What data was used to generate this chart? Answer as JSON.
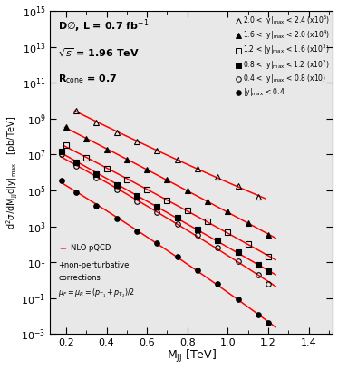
{
  "xlim": [
    0.12,
    1.52
  ],
  "ylim_log": [
    -3,
    15
  ],
  "series": [
    {
      "label": "2.0 < |y|_{max} < 2.4 (x10^5)",
      "marker": "^",
      "filled": false,
      "x": [
        0.25,
        0.35,
        0.45,
        0.55,
        0.65,
        0.75,
        0.85,
        0.95,
        1.05,
        1.15
      ],
      "y": [
        2800000000.0,
        650000000.0,
        180000000.0,
        52000000.0,
        16000000.0,
        5200000.0,
        1700000.0,
        550000.0,
        170000.0,
        45000.0
      ]
    },
    {
      "label": "1.6 < |y|_{max} < 2.0 (x10^4)",
      "marker": "^",
      "filled": true,
      "x": [
        0.2,
        0.3,
        0.4,
        0.5,
        0.6,
        0.7,
        0.8,
        0.9,
        1.0,
        1.1,
        1.2
      ],
      "y": [
        350000000.0,
        75000000.0,
        19000000.0,
        5000000.0,
        1400000.0,
        380000.0,
        100000.0,
        26000.0,
        6500.0,
        1500.0,
        330.0
      ]
    },
    {
      "label": "1.2 < |y|_{max} < 1.6 (x10^3)",
      "marker": "s",
      "filled": false,
      "x": [
        0.2,
        0.3,
        0.4,
        0.5,
        0.6,
        0.7,
        0.8,
        0.9,
        1.0,
        1.1,
        1.2
      ],
      "y": [
        32000000.0,
        6500000.0,
        1600000.0,
        420000.0,
        110000.0,
        29000.0,
        7500.0,
        1900.0,
        450.0,
        100.0,
        20.0
      ]
    },
    {
      "label": "0.8 < |y|_{max} < 1.2 (x10^2)",
      "marker": "s",
      "filled": true,
      "x": [
        0.18,
        0.25,
        0.35,
        0.45,
        0.55,
        0.65,
        0.75,
        0.85,
        0.95,
        1.05,
        1.15,
        1.2
      ],
      "y": [
        15000000.0,
        3800000.0,
        850000.0,
        200000.0,
        48000.0,
        12000.0,
        3000.0,
        700.0,
        160.0,
        35.0,
        7.0,
        3.0
      ]
    },
    {
      "label": "0.4 < |y|_{max} < 0.8 (x10)",
      "marker": "o",
      "filled": false,
      "x": [
        0.18,
        0.25,
        0.35,
        0.45,
        0.55,
        0.65,
        0.75,
        0.85,
        0.95,
        1.05,
        1.15,
        1.2
      ],
      "y": [
        10000000.0,
        2300000.0,
        480000.0,
        110000.0,
        25000.0,
        6000.0,
        1400.0,
        320.0,
        65.0,
        12.0,
        2.0,
        0.6
      ]
    },
    {
      "label": "|y|_{max} < 0.4",
      "marker": "o",
      "filled": true,
      "x": [
        0.18,
        0.25,
        0.35,
        0.45,
        0.55,
        0.65,
        0.75,
        0.85,
        0.95,
        1.05,
        1.15,
        1.2
      ],
      "y": [
        350000.0,
        75000.0,
        14000.0,
        2800.0,
        550.0,
        110.0,
        20.0,
        3.5,
        0.6,
        0.09,
        0.012,
        0.004
      ]
    }
  ],
  "bg_color": "#e8e8e8",
  "plot_bg": "#e8e8e8"
}
